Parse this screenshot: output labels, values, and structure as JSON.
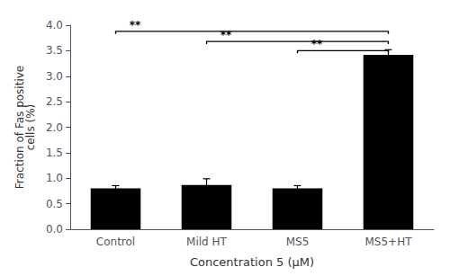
{
  "chart_data": {
    "type": "bar",
    "categories": [
      "Control",
      "Mild HT",
      "MS5",
      "MS5+HT"
    ],
    "values": [
      0.8,
      0.87,
      0.8,
      3.42
    ],
    "errors": [
      0.055,
      0.12,
      0.055,
      0.1
    ],
    "color": "#000000",
    "xlabel": "Concentration 5 (μM)",
    "ylabel": "Fraction of Fas positive\ncells (%)",
    "ylim": [
      0,
      4.0
    ],
    "yticks": [
      {
        "value": 0,
        "label": "0.0"
      },
      0.5,
      {
        "value": 1.0,
        "label": "1.0"
      },
      1.5,
      {
        "value": 2.0,
        "label": "2.0"
      },
      2.5,
      {
        "value": 3.0,
        "label": "3.0"
      },
      3.5,
      {
        "value": 4.0,
        "label": "4.0"
      }
    ],
    "grid": false,
    "annotations": [
      {
        "text": "**",
        "left": "Control",
        "right": "MS5+HT",
        "y": 3.88
      },
      {
        "text": "**",
        "left": "Mild HT",
        "right": "MS5+HT",
        "y": 3.68
      },
      {
        "text": "**",
        "left": "MS5",
        "right": "MS5+HT",
        "y": 3.5
      }
    ]
  }
}
